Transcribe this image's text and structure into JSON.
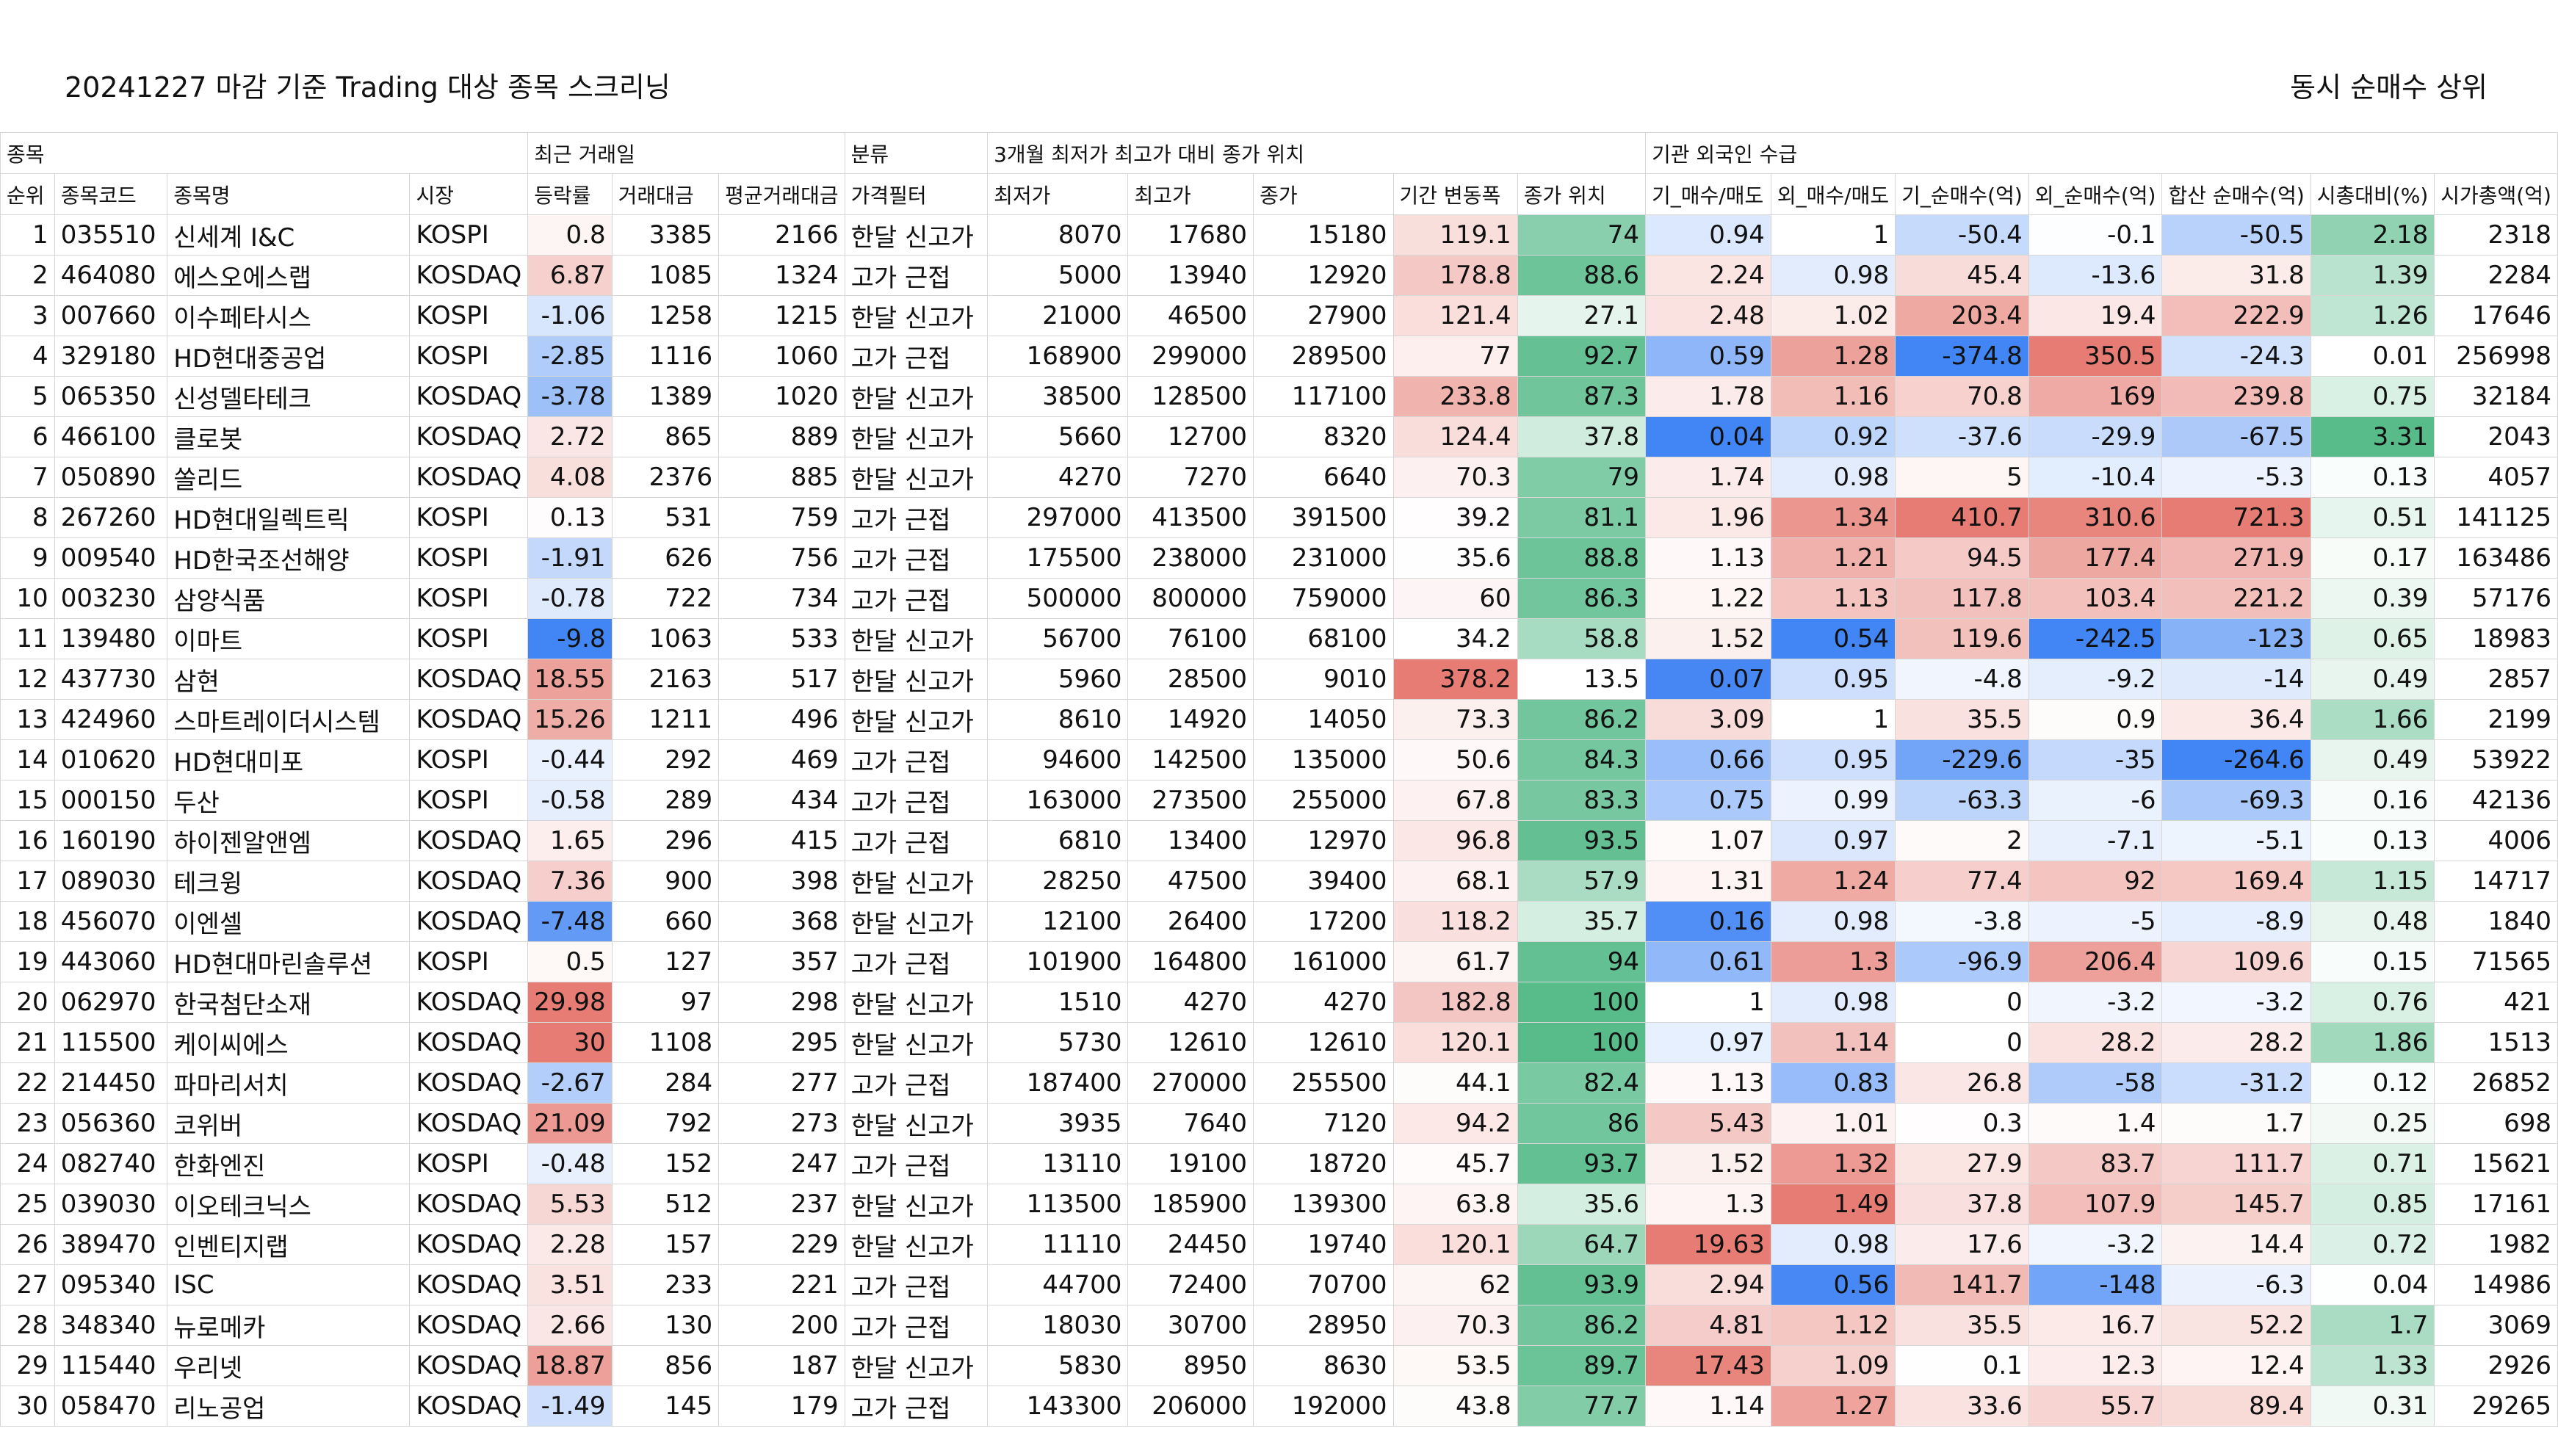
{
  "title": "20241227 마감 기준 Trading 대상 종목 스크리닝",
  "subtitle": "동시 순매수 상위",
  "groups": [
    "종목",
    "최근 거래일",
    "분류",
    "3개월 최저가 최고가 대비 종가 위치",
    "기관 외국인 수급"
  ],
  "columns": [
    "순위",
    "종목코드",
    "종목명",
    "시장",
    "등락률",
    "거래대금",
    "평균거래대금",
    "가격필터",
    "최저가",
    "최고가",
    "종가",
    "기간 변동폭",
    "종가 위치",
    "기_매수/매도",
    "외_매수/매도",
    "기_순매수(억)",
    "외_순매수(억)",
    "합산 순매수(억)",
    "시총대비(%)",
    "시가총액(억)"
  ],
  "rows": [
    [
      "1",
      "035510",
      "신세계 I&C",
      "KOSPI",
      "0.8",
      "3385",
      "2166",
      "한달 신고가",
      "8070",
      "17680",
      "15180",
      "119.1",
      "74",
      "0.94",
      "1",
      "-50.4",
      "-0.1",
      "-50.5",
      "2.18",
      "2318"
    ],
    [
      "2",
      "464080",
      "에스오에스랩",
      "KOSDAQ",
      "6.87",
      "1085",
      "1324",
      "고가 근접",
      "5000",
      "13940",
      "12920",
      "178.8",
      "88.6",
      "2.24",
      "0.98",
      "45.4",
      "-13.6",
      "31.8",
      "1.39",
      "2284"
    ],
    [
      "3",
      "007660",
      "이수페타시스",
      "KOSPI",
      "-1.06",
      "1258",
      "1215",
      "한달 신고가",
      "21000",
      "46500",
      "27900",
      "121.4",
      "27.1",
      "2.48",
      "1.02",
      "203.4",
      "19.4",
      "222.9",
      "1.26",
      "17646"
    ],
    [
      "4",
      "329180",
      "HD현대중공업",
      "KOSPI",
      "-2.85",
      "1116",
      "1060",
      "고가 근접",
      "168900",
      "299000",
      "289500",
      "77",
      "92.7",
      "0.59",
      "1.28",
      "-374.8",
      "350.5",
      "-24.3",
      "0.01",
      "256998"
    ],
    [
      "5",
      "065350",
      "신성델타테크",
      "KOSDAQ",
      "-3.78",
      "1389",
      "1020",
      "한달 신고가",
      "38500",
      "128500",
      "117100",
      "233.8",
      "87.3",
      "1.78",
      "1.16",
      "70.8",
      "169",
      "239.8",
      "0.75",
      "32184"
    ],
    [
      "6",
      "466100",
      "클로봇",
      "KOSDAQ",
      "2.72",
      "865",
      "889",
      "한달 신고가",
      "5660",
      "12700",
      "8320",
      "124.4",
      "37.8",
      "0.04",
      "0.92",
      "-37.6",
      "-29.9",
      "-67.5",
      "3.31",
      "2043"
    ],
    [
      "7",
      "050890",
      "쏠리드",
      "KOSDAQ",
      "4.08",
      "2376",
      "885",
      "한달 신고가",
      "4270",
      "7270",
      "6640",
      "70.3",
      "79",
      "1.74",
      "0.98",
      "5",
      "-10.4",
      "-5.3",
      "0.13",
      "4057"
    ],
    [
      "8",
      "267260",
      "HD현대일렉트릭",
      "KOSPI",
      "0.13",
      "531",
      "759",
      "고가 근접",
      "297000",
      "413500",
      "391500",
      "39.2",
      "81.1",
      "1.96",
      "1.34",
      "410.7",
      "310.6",
      "721.3",
      "0.51",
      "141125"
    ],
    [
      "9",
      "009540",
      "HD한국조선해양",
      "KOSPI",
      "-1.91",
      "626",
      "756",
      "고가 근접",
      "175500",
      "238000",
      "231000",
      "35.6",
      "88.8",
      "1.13",
      "1.21",
      "94.5",
      "177.4",
      "271.9",
      "0.17",
      "163486"
    ],
    [
      "10",
      "003230",
      "삼양식품",
      "KOSPI",
      "-0.78",
      "722",
      "734",
      "고가 근접",
      "500000",
      "800000",
      "759000",
      "60",
      "86.3",
      "1.22",
      "1.13",
      "117.8",
      "103.4",
      "221.2",
      "0.39",
      "57176"
    ],
    [
      "11",
      "139480",
      "이마트",
      "KOSPI",
      "-9.8",
      "1063",
      "533",
      "한달 신고가",
      "56700",
      "76100",
      "68100",
      "34.2",
      "58.8",
      "1.52",
      "0.54",
      "119.6",
      "-242.5",
      "-123",
      "0.65",
      "18983"
    ],
    [
      "12",
      "437730",
      "삼현",
      "KOSDAQ",
      "18.55",
      "2163",
      "517",
      "한달 신고가",
      "5960",
      "28500",
      "9010",
      "378.2",
      "13.5",
      "0.07",
      "0.95",
      "-4.8",
      "-9.2",
      "-14",
      "0.49",
      "2857"
    ],
    [
      "13",
      "424960",
      "스마트레이더시스템",
      "KOSDAQ",
      "15.26",
      "1211",
      "496",
      "한달 신고가",
      "8610",
      "14920",
      "14050",
      "73.3",
      "86.2",
      "3.09",
      "1",
      "35.5",
      "0.9",
      "36.4",
      "1.66",
      "2199"
    ],
    [
      "14",
      "010620",
      "HD현대미포",
      "KOSPI",
      "-0.44",
      "292",
      "469",
      "고가 근접",
      "94600",
      "142500",
      "135000",
      "50.6",
      "84.3",
      "0.66",
      "0.95",
      "-229.6",
      "-35",
      "-264.6",
      "0.49",
      "53922"
    ],
    [
      "15",
      "000150",
      "두산",
      "KOSPI",
      "-0.58",
      "289",
      "434",
      "고가 근접",
      "163000",
      "273500",
      "255000",
      "67.8",
      "83.3",
      "0.75",
      "0.99",
      "-63.3",
      "-6",
      "-69.3",
      "0.16",
      "42136"
    ],
    [
      "16",
      "160190",
      "하이젠알앤엠",
      "KOSDAQ",
      "1.65",
      "296",
      "415",
      "고가 근접",
      "6810",
      "13400",
      "12970",
      "96.8",
      "93.5",
      "1.07",
      "0.97",
      "2",
      "-7.1",
      "-5.1",
      "0.13",
      "4006"
    ],
    [
      "17",
      "089030",
      "테크윙",
      "KOSDAQ",
      "7.36",
      "900",
      "398",
      "한달 신고가",
      "28250",
      "47500",
      "39400",
      "68.1",
      "57.9",
      "1.31",
      "1.24",
      "77.4",
      "92",
      "169.4",
      "1.15",
      "14717"
    ],
    [
      "18",
      "456070",
      "이엔셀",
      "KOSDAQ",
      "-7.48",
      "660",
      "368",
      "한달 신고가",
      "12100",
      "26400",
      "17200",
      "118.2",
      "35.7",
      "0.16",
      "0.98",
      "-3.8",
      "-5",
      "-8.9",
      "0.48",
      "1840"
    ],
    [
      "19",
      "443060",
      "HD현대마린솔루션",
      "KOSPI",
      "0.5",
      "127",
      "357",
      "고가 근접",
      "101900",
      "164800",
      "161000",
      "61.7",
      "94",
      "0.61",
      "1.3",
      "-96.9",
      "206.4",
      "109.6",
      "0.15",
      "71565"
    ],
    [
      "20",
      "062970",
      "한국첨단소재",
      "KOSDAQ",
      "29.98",
      "97",
      "298",
      "한달 신고가",
      "1510",
      "4270",
      "4270",
      "182.8",
      "100",
      "1",
      "0.98",
      "0",
      "-3.2",
      "-3.2",
      "0.76",
      "421"
    ],
    [
      "21",
      "115500",
      "케이씨에스",
      "KOSDAQ",
      "30",
      "1108",
      "295",
      "한달 신고가",
      "5730",
      "12610",
      "12610",
      "120.1",
      "100",
      "0.97",
      "1.14",
      "0",
      "28.2",
      "28.2",
      "1.86",
      "1513"
    ],
    [
      "22",
      "214450",
      "파마리서치",
      "KOSDAQ",
      "-2.67",
      "284",
      "277",
      "고가 근접",
      "187400",
      "270000",
      "255500",
      "44.1",
      "82.4",
      "1.13",
      "0.83",
      "26.8",
      "-58",
      "-31.2",
      "0.12",
      "26852"
    ],
    [
      "23",
      "056360",
      "코위버",
      "KOSDAQ",
      "21.09",
      "792",
      "273",
      "한달 신고가",
      "3935",
      "7640",
      "7120",
      "94.2",
      "86",
      "5.43",
      "1.01",
      "0.3",
      "1.4",
      "1.7",
      "0.25",
      "698"
    ],
    [
      "24",
      "082740",
      "한화엔진",
      "KOSPI",
      "-0.48",
      "152",
      "247",
      "고가 근접",
      "13110",
      "19100",
      "18720",
      "45.7",
      "93.7",
      "1.52",
      "1.32",
      "27.9",
      "83.7",
      "111.7",
      "0.71",
      "15621"
    ],
    [
      "25",
      "039030",
      "이오테크닉스",
      "KOSDAQ",
      "5.53",
      "512",
      "237",
      "한달 신고가",
      "113500",
      "185900",
      "139300",
      "63.8",
      "35.6",
      "1.3",
      "1.49",
      "37.8",
      "107.9",
      "145.7",
      "0.85",
      "17161"
    ],
    [
      "26",
      "389470",
      "인벤티지랩",
      "KOSDAQ",
      "2.28",
      "157",
      "229",
      "한달 신고가",
      "11110",
      "24450",
      "19740",
      "120.1",
      "64.7",
      "19.63",
      "0.98",
      "17.6",
      "-3.2",
      "14.4",
      "0.72",
      "1982"
    ],
    [
      "27",
      "095340",
      "ISC",
      "KOSDAQ",
      "3.51",
      "233",
      "221",
      "고가 근접",
      "44700",
      "72400",
      "70700",
      "62",
      "93.9",
      "2.94",
      "0.56",
      "141.7",
      "-148",
      "-6.3",
      "0.04",
      "14986"
    ],
    [
      "28",
      "348340",
      "뉴로메카",
      "KOSDAQ",
      "2.66",
      "130",
      "200",
      "고가 근접",
      "18030",
      "30700",
      "28950",
      "70.3",
      "86.2",
      "4.81",
      "1.12",
      "35.5",
      "16.7",
      "52.2",
      "1.7",
      "3069"
    ],
    [
      "29",
      "115440",
      "우리넷",
      "KOSDAQ",
      "18.87",
      "856",
      "187",
      "한달 신고가",
      "5830",
      "8950",
      "8630",
      "53.5",
      "89.7",
      "17.43",
      "1.09",
      "0.1",
      "12.3",
      "12.4",
      "1.33",
      "2926"
    ],
    [
      "30",
      "058470",
      "리노공업",
      "KOSDAQ",
      "-1.49",
      "145",
      "179",
      "고가 근접",
      "143300",
      "206000",
      "192000",
      "43.8",
      "77.7",
      "1.14",
      "1.27",
      "33.6",
      "55.7",
      "89.4",
      "0.31",
      "29265"
    ]
  ]
}
